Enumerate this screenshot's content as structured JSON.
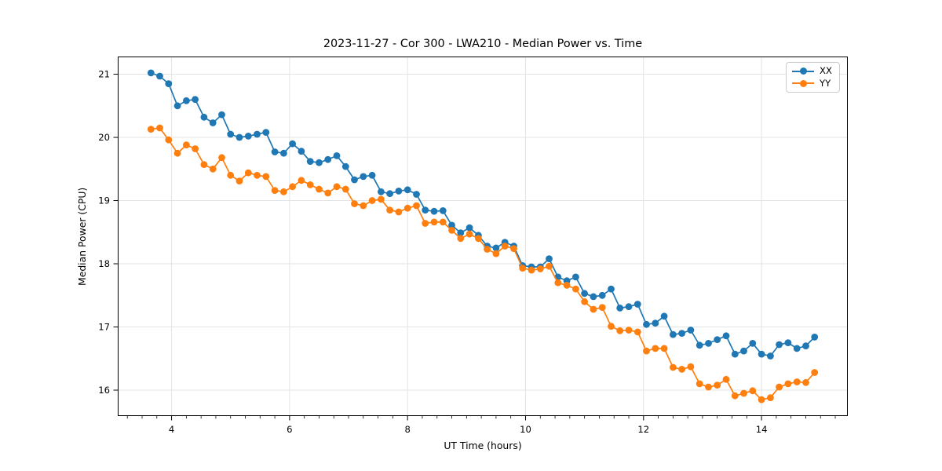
{
  "chart_data": {
    "type": "line",
    "title": "2023-11-27 - Cor 300 - LWA210 - Median Power vs. Time",
    "xlabel": "UT Time (hours)",
    "ylabel": "Median Power (CPU)",
    "xlim": [
      3.0875,
      15.4625
    ],
    "ylim": [
      15.59,
      21.28
    ],
    "x_ticks": [
      4,
      6,
      8,
      10,
      12,
      14
    ],
    "y_ticks": [
      16,
      17,
      18,
      19,
      20,
      21
    ],
    "x_minor_tick_step": 0.25,
    "grid": true,
    "legend_position": "upper right",
    "x": [
      3.65,
      3.8,
      3.95,
      4.1,
      4.25,
      4.4,
      4.55,
      4.7,
      4.85,
      5.0,
      5.15,
      5.3,
      5.45,
      5.6,
      5.75,
      5.9,
      6.05,
      6.2,
      6.35,
      6.5,
      6.65,
      6.8,
      6.95,
      7.1,
      7.25,
      7.4,
      7.55,
      7.7,
      7.85,
      8.0,
      8.15,
      8.3,
      8.45,
      8.6,
      8.75,
      8.9,
      9.05,
      9.2,
      9.35,
      9.5,
      9.65,
      9.8,
      9.95,
      10.1,
      10.25,
      10.4,
      10.55,
      10.7,
      10.85,
      11.0,
      11.15,
      11.3,
      11.45,
      11.6,
      11.75,
      11.9,
      12.05,
      12.2,
      12.35,
      12.5,
      12.65,
      12.8,
      12.95,
      13.1,
      13.25,
      13.4,
      13.55,
      13.7,
      13.85,
      14.0,
      14.15,
      14.3,
      14.45,
      14.6,
      14.75,
      14.9
    ],
    "series": [
      {
        "name": "XX",
        "color": "#1f77b4",
        "values": [
          21.02,
          20.97,
          20.85,
          20.5,
          20.58,
          20.6,
          20.32,
          20.23,
          20.36,
          20.05,
          20.0,
          20.02,
          20.05,
          20.08,
          19.77,
          19.75,
          19.9,
          19.78,
          19.62,
          19.6,
          19.65,
          19.71,
          19.54,
          19.33,
          19.38,
          19.4,
          19.14,
          19.11,
          19.15,
          19.17,
          19.1,
          18.85,
          18.83,
          18.84,
          18.61,
          18.49,
          18.57,
          18.45,
          18.28,
          18.25,
          18.34,
          18.28,
          17.97,
          17.95,
          17.95,
          18.08,
          17.79,
          17.73,
          17.79,
          17.53,
          17.48,
          17.5,
          17.6,
          17.3,
          17.32,
          17.36,
          17.04,
          17.06,
          17.17,
          16.88,
          16.9,
          16.95,
          16.71,
          16.74,
          16.8,
          16.86,
          16.57,
          16.62,
          16.74,
          16.57,
          16.54,
          16.72,
          16.75,
          16.66,
          16.7,
          16.84
        ]
      },
      {
        "name": "YY",
        "color": "#ff7f0e",
        "values": [
          20.13,
          20.15,
          19.96,
          19.75,
          19.88,
          19.82,
          19.57,
          19.5,
          19.68,
          19.4,
          19.31,
          19.44,
          19.4,
          19.38,
          19.16,
          19.14,
          19.22,
          19.32,
          19.25,
          19.18,
          19.12,
          19.22,
          19.18,
          18.95,
          18.92,
          19.0,
          19.02,
          18.85,
          18.82,
          18.88,
          18.92,
          18.64,
          18.66,
          18.66,
          18.53,
          18.4,
          18.47,
          18.4,
          18.23,
          18.16,
          18.28,
          18.24,
          17.93,
          17.9,
          17.92,
          17.96,
          17.7,
          17.66,
          17.6,
          17.4,
          17.28,
          17.31,
          17.01,
          16.94,
          16.95,
          16.92,
          16.62,
          16.66,
          16.66,
          16.36,
          16.33,
          16.37,
          16.1,
          16.05,
          16.08,
          16.17,
          15.91,
          15.95,
          15.99,
          15.85,
          15.88,
          16.05,
          16.1,
          16.13,
          16.12,
          16.28
        ]
      }
    ]
  },
  "style": {
    "grid_color": "#e3e3e3",
    "spine_color": "#000000",
    "tick_color": "#000000",
    "background": "#ffffff"
  }
}
